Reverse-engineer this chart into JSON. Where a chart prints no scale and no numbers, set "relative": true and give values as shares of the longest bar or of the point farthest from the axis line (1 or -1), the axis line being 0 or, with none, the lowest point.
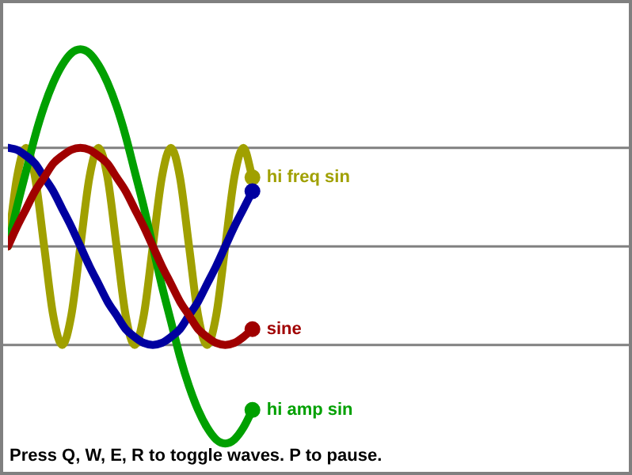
{
  "chart_data": {
    "type": "line",
    "relative": true,
    "categories": [
      null,
      null,
      null,
      null,
      null,
      null,
      null,
      null,
      null,
      null,
      null,
      null,
      null,
      null,
      null,
      null,
      null,
      null,
      null,
      null,
      null,
      null,
      null,
      null,
      null,
      null,
      null,
      null
    ],
    "series": [
      {
        "name": "sine",
        "color": "#a00000",
        "values": [
          0,
          0.1,
          0.19,
          0.28,
          0.35,
          0.42,
          0.46,
          0.49,
          0.5,
          0.49,
          0.46,
          0.42,
          0.35,
          0.28,
          0.19,
          0.1,
          0,
          -0.1,
          -0.19,
          -0.28,
          -0.35,
          -0.42,
          -0.46,
          -0.49,
          -0.5,
          -0.49,
          -0.46,
          -0.42
        ]
      },
      {
        "color": "#0000a0",
        "values": [
          0.5,
          0.49,
          0.46,
          0.42,
          0.35,
          0.28,
          0.19,
          0.1,
          0,
          -0.1,
          -0.19,
          -0.28,
          -0.35,
          -0.42,
          -0.46,
          -0.49,
          -0.5,
          -0.49,
          -0.46,
          -0.42,
          -0.35,
          -0.28,
          -0.19,
          -0.1,
          0,
          0.1,
          0.19,
          0.28
        ]
      },
      {
        "name": "hi amp sin",
        "color": "#00a000",
        "values": [
          0,
          0.2,
          0.38,
          0.56,
          0.71,
          0.83,
          0.92,
          0.98,
          1,
          0.98,
          0.92,
          0.83,
          0.71,
          0.56,
          0.38,
          0.2,
          0,
          -0.2,
          -0.38,
          -0.56,
          -0.71,
          -0.83,
          -0.92,
          -0.98,
          -1,
          -0.98,
          -0.92,
          -0.83
        ]
      },
      {
        "name": "hi freq sin",
        "color": "#a0a000",
        "values": [
          0,
          0.35,
          0.5,
          0.35,
          0,
          -0.35,
          -0.5,
          -0.35,
          0,
          0.35,
          0.5,
          0.35,
          0,
          -0.35,
          -0.5,
          -0.35,
          0,
          0.35,
          0.5,
          0.35,
          0,
          -0.35,
          -0.5,
          -0.35,
          0,
          0.35,
          0.5,
          0.35
        ]
      }
    ],
    "ref_lines": [
      {
        "axis": "y",
        "value": 0.5,
        "color": "#808080"
      },
      {
        "axis": "y",
        "value": 0,
        "color": "#808080"
      },
      {
        "axis": "y",
        "value": -0.5,
        "color": "#808080"
      }
    ],
    "annotations": [
      "Press Q, W, E, R to toggle waves. P to pause."
    ],
    "legend": false
  }
}
